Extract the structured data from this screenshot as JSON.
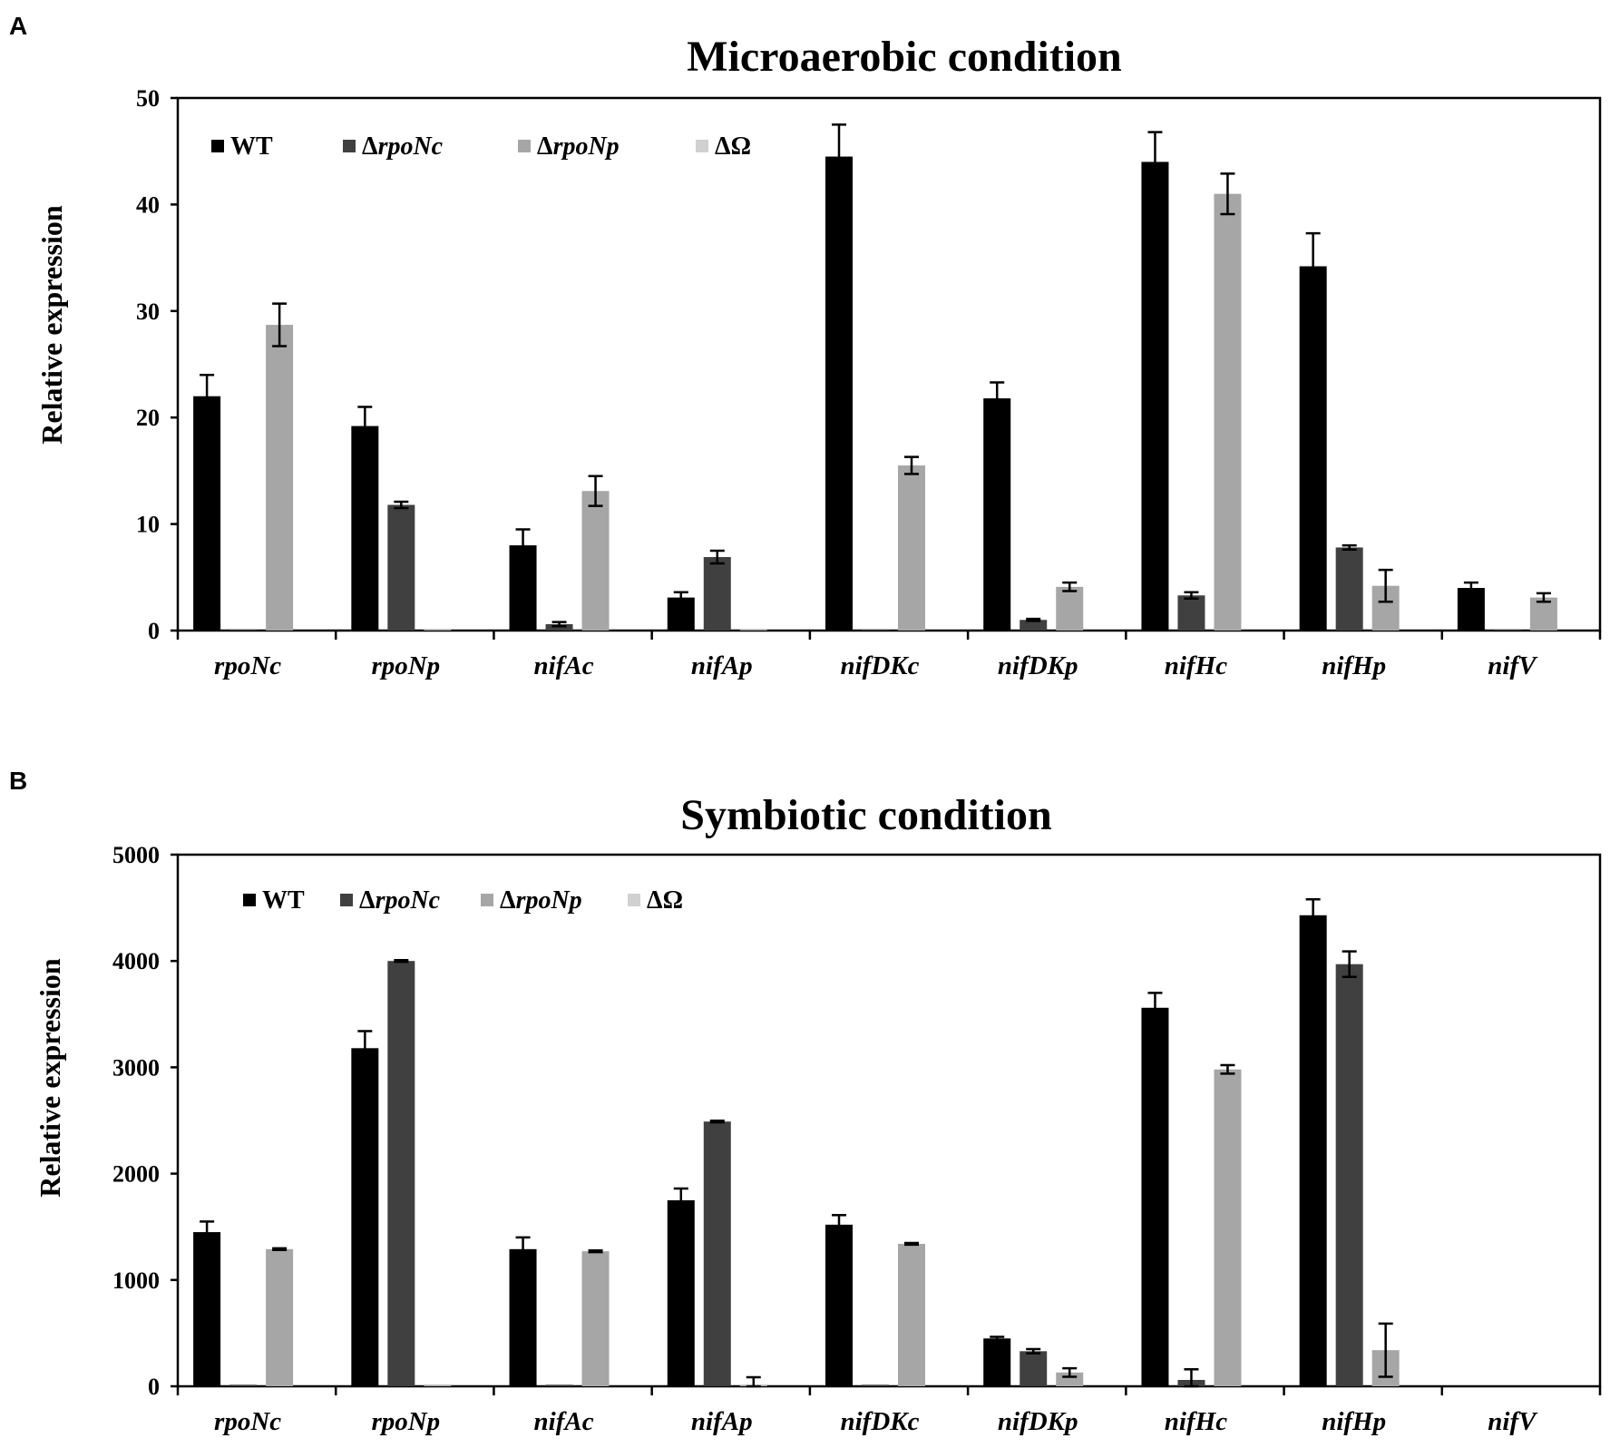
{
  "chart_data": [
    {
      "panel": "A",
      "type": "bar",
      "title": "Microaerobic condition",
      "xlabel": "",
      "ylabel": "Relative expression",
      "ylim": [
        0,
        50
      ],
      "yticks": [
        "0",
        "10",
        "20",
        "30",
        "40",
        "50"
      ],
      "categories": [
        "rpoNc",
        "rpoNp",
        "nifAc",
        "nifAp",
        "nifDKc",
        "nifDKp",
        "nifHc",
        "nifHp",
        "nifV"
      ],
      "legend_position": "top-left",
      "series": [
        {
          "name": "WT",
          "legend_prefix": "",
          "legend_main": "WT",
          "color": "#000000",
          "values": [
            22,
            19.2,
            8,
            3.1,
            44.5,
            21.8,
            44,
            34.2,
            4
          ],
          "errors": [
            2,
            1.8,
            1.5,
            0.5,
            3,
            1.5,
            2.8,
            3.1,
            0.5
          ]
        },
        {
          "name": "ΔrpoNc",
          "legend_prefix": "Δ",
          "legend_main": "rpoNc",
          "color": "#404040",
          "values": [
            0.1,
            11.8,
            0.6,
            6.9,
            0.1,
            1,
            3.3,
            7.8,
            0.1
          ],
          "errors": [
            0,
            0.3,
            0.2,
            0.6,
            0,
            0.1,
            0.3,
            0.2,
            0
          ]
        },
        {
          "name": "ΔrpoNp",
          "legend_prefix": "Δ",
          "legend_main": "rpoNp",
          "color": "#a6a6a6",
          "values": [
            28.7,
            0.1,
            13.1,
            0.1,
            15.5,
            4.1,
            41,
            4.2,
            3.1
          ],
          "errors": [
            2,
            0,
            1.4,
            0,
            0.8,
            0.4,
            1.9,
            1.5,
            0.4
          ]
        },
        {
          "name": "ΔΩ",
          "legend_prefix": "Δ",
          "legend_main": "Ω",
          "color": "#d0d0d0",
          "values": [
            0,
            0,
            0,
            0,
            0,
            0,
            0,
            0,
            0
          ],
          "errors": [
            0,
            0,
            0,
            0,
            0,
            0,
            0,
            0,
            0
          ]
        }
      ]
    },
    {
      "panel": "B",
      "type": "bar",
      "title": "Symbiotic condition",
      "xlabel": "",
      "ylabel": "Relative expression",
      "ylim": [
        0,
        5000
      ],
      "yticks": [
        "0",
        "1000",
        "2000",
        "3000",
        "4000",
        "5000"
      ],
      "categories": [
        "rpoNc",
        "rpoNp",
        "nifAc",
        "nifAp",
        "nifDKc",
        "nifDKp",
        "nifHc",
        "nifHp",
        "nifV"
      ],
      "legend_position": "top-left",
      "series": [
        {
          "name": "WT",
          "legend_prefix": "",
          "legend_main": "WT",
          "color": "#000000",
          "values": [
            1450,
            3180,
            1290,
            1750,
            1520,
            450,
            3560,
            4430,
            0
          ],
          "errors": [
            100,
            160,
            110,
            110,
            90,
            15,
            140,
            150,
            0
          ]
        },
        {
          "name": "ΔrpoNc",
          "legend_prefix": "Δ",
          "legend_main": "rpoNc",
          "color": "#404040",
          "values": [
            15,
            4000,
            15,
            2490,
            15,
            330,
            60,
            3970,
            0
          ],
          "errors": [
            0,
            8,
            0,
            8,
            0,
            20,
            100,
            120,
            0
          ]
        },
        {
          "name": "ΔrpoNp",
          "legend_prefix": "Δ",
          "legend_main": "rpoNp",
          "color": "#a6a6a6",
          "values": [
            1290,
            15,
            1270,
            10,
            1340,
            130,
            2980,
            340,
            0
          ],
          "errors": [
            8,
            0,
            8,
            75,
            8,
            40,
            40,
            250,
            0
          ]
        },
        {
          "name": "ΔΩ",
          "legend_prefix": "Δ",
          "legend_main": "Ω",
          "color": "#d0d0d0",
          "values": [
            0,
            0,
            0,
            0,
            0,
            0,
            0,
            0,
            0
          ],
          "errors": [
            0,
            0,
            0,
            0,
            0,
            0,
            0,
            0,
            0
          ]
        }
      ]
    }
  ]
}
